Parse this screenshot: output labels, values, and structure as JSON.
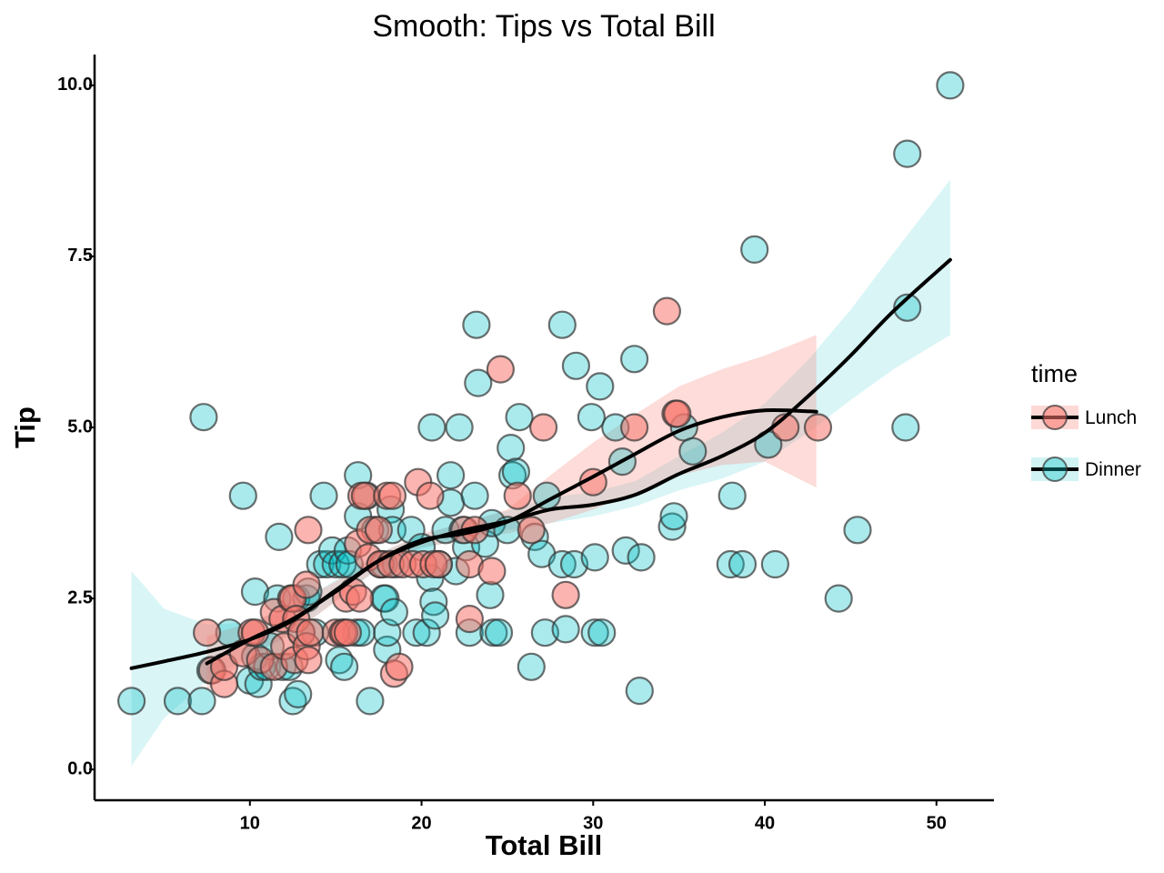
{
  "chart_data": {
    "type": "scatter",
    "title": "Smooth: Tips vs Total Bill",
    "xlabel": "Total Bill",
    "ylabel": "Tip",
    "xlim": [
      0.95,
      53.35
    ],
    "ylim": [
      -0.45,
      10.45
    ],
    "x_ticks": [
      10,
      20,
      30,
      40,
      50
    ],
    "x_tick_labels": [
      "10",
      "20",
      "30",
      "40",
      "50"
    ],
    "y_ticks": [
      0.0,
      2.5,
      5.0,
      7.5,
      10.0
    ],
    "y_tick_labels": [
      "0.0",
      "2.5",
      "5.0",
      "7.5",
      "10.0"
    ],
    "grid": false,
    "legend": {
      "title": "time",
      "placement": "right"
    },
    "series": [
      {
        "name": "Lunch",
        "color": "#F8766D",
        "points": [
          [
            7.5,
            2.0
          ],
          [
            7.8,
            1.45
          ],
          [
            8.5,
            1.25
          ],
          [
            8.5,
            1.5
          ],
          [
            9.6,
            1.7
          ],
          [
            10.1,
            2.0
          ],
          [
            10.3,
            2.0
          ],
          [
            10.6,
            1.6
          ],
          [
            11.4,
            1.5
          ],
          [
            11.4,
            2.3
          ],
          [
            11.9,
            2.2
          ],
          [
            12.0,
            1.8
          ],
          [
            12.4,
            2.5
          ],
          [
            12.5,
            2.5
          ],
          [
            12.6,
            1.6
          ],
          [
            12.7,
            2.2
          ],
          [
            13.0,
            2.0
          ],
          [
            13.3,
            2.7
          ],
          [
            13.3,
            1.8
          ],
          [
            13.4,
            1.6
          ],
          [
            13.4,
            3.5
          ],
          [
            13.5,
            2.0
          ],
          [
            15.0,
            2.0
          ],
          [
            15.4,
            2.0
          ],
          [
            15.5,
            2.0
          ],
          [
            15.6,
            2.5
          ],
          [
            15.7,
            2.0
          ],
          [
            16.0,
            2.6
          ],
          [
            16.3,
            3.3
          ],
          [
            16.4,
            2.5
          ],
          [
            16.5,
            4.0
          ],
          [
            16.7,
            4.0
          ],
          [
            16.9,
            3.1
          ],
          [
            17.0,
            3.5
          ],
          [
            17.5,
            3.5
          ],
          [
            17.6,
            3.0
          ],
          [
            18.0,
            4.0
          ],
          [
            18.2,
            3.0
          ],
          [
            18.3,
            4.0
          ],
          [
            18.4,
            1.4
          ],
          [
            18.7,
            1.5
          ],
          [
            18.9,
            3.0
          ],
          [
            19.5,
            3.0
          ],
          [
            19.8,
            4.2
          ],
          [
            20.1,
            3.0
          ],
          [
            20.5,
            4.0
          ],
          [
            20.7,
            3.0
          ],
          [
            21.0,
            3.0
          ],
          [
            22.5,
            3.5
          ],
          [
            22.8,
            3.0
          ],
          [
            22.8,
            2.2
          ],
          [
            23.1,
            3.5
          ],
          [
            24.1,
            2.9
          ],
          [
            24.6,
            5.85
          ],
          [
            25.6,
            4.0
          ],
          [
            26.4,
            3.5
          ],
          [
            27.1,
            5.0
          ],
          [
            28.4,
            2.55
          ],
          [
            30.0,
            4.2
          ],
          [
            32.4,
            5.0
          ],
          [
            34.3,
            6.7
          ],
          [
            34.8,
            5.2
          ],
          [
            34.9,
            5.2
          ],
          [
            41.2,
            5.0
          ],
          [
            43.1,
            5.0
          ]
        ],
        "smooth": [
          [
            7.5,
            1.55
          ],
          [
            10,
            1.9
          ],
          [
            12.5,
            2.2
          ],
          [
            15,
            2.6
          ],
          [
            17.5,
            3.05
          ],
          [
            20,
            3.35
          ],
          [
            22.5,
            3.45
          ],
          [
            25,
            3.62
          ],
          [
            27.5,
            3.95
          ],
          [
            30,
            4.28
          ],
          [
            32.5,
            4.62
          ],
          [
            35,
            4.95
          ],
          [
            37.5,
            5.15
          ],
          [
            40,
            5.25
          ],
          [
            43,
            5.23
          ]
        ],
        "band_low": [
          [
            7.5,
            1.15
          ],
          [
            10,
            1.65
          ],
          [
            12.5,
            2.0
          ],
          [
            15,
            2.45
          ],
          [
            17.5,
            2.95
          ],
          [
            20,
            3.25
          ],
          [
            22.5,
            3.35
          ],
          [
            25,
            3.45
          ],
          [
            27.5,
            3.6
          ],
          [
            30,
            3.8
          ],
          [
            32.5,
            4.05
          ],
          [
            35,
            4.3
          ],
          [
            37.5,
            4.45
          ],
          [
            40,
            4.5
          ],
          [
            43,
            4.12
          ]
        ],
        "band_high": [
          [
            7.5,
            1.95
          ],
          [
            10,
            2.15
          ],
          [
            12.5,
            2.4
          ],
          [
            15,
            2.75
          ],
          [
            17.5,
            3.15
          ],
          [
            20,
            3.45
          ],
          [
            22.5,
            3.6
          ],
          [
            25,
            3.8
          ],
          [
            27.5,
            4.3
          ],
          [
            30,
            4.78
          ],
          [
            32.5,
            5.2
          ],
          [
            35,
            5.6
          ],
          [
            37.5,
            5.85
          ],
          [
            40,
            6.05
          ],
          [
            43,
            6.35
          ]
        ]
      },
      {
        "name": "Dinner",
        "color": "#00BFC4",
        "points": [
          [
            3.1,
            1.0
          ],
          [
            5.8,
            1.0
          ],
          [
            7.2,
            1.0
          ],
          [
            7.3,
            5.15
          ],
          [
            7.7,
            1.45
          ],
          [
            8.8,
            2.0
          ],
          [
            9.6,
            4.0
          ],
          [
            10.0,
            1.3
          ],
          [
            10.3,
            2.6
          ],
          [
            10.3,
            1.65
          ],
          [
            10.5,
            1.25
          ],
          [
            10.7,
            1.5
          ],
          [
            11.0,
            1.5
          ],
          [
            11.2,
            1.8
          ],
          [
            11.6,
            2.5
          ],
          [
            11.7,
            3.4
          ],
          [
            11.9,
            1.5
          ],
          [
            12.3,
            1.5
          ],
          [
            12.5,
            1.0
          ],
          [
            12.7,
            2.5
          ],
          [
            12.8,
            1.1
          ],
          [
            13.0,
            2.0
          ],
          [
            13.3,
            2.5
          ],
          [
            13.4,
            2.6
          ],
          [
            13.8,
            2.0
          ],
          [
            14.1,
            3.0
          ],
          [
            14.3,
            4.0
          ],
          [
            14.5,
            3.0
          ],
          [
            14.8,
            3.2
          ],
          [
            15.0,
            3.0
          ],
          [
            15.2,
            1.6
          ],
          [
            15.4,
            3.0
          ],
          [
            15.5,
            1.5
          ],
          [
            15.7,
            3.2
          ],
          [
            15.8,
            3.0
          ],
          [
            16.2,
            2.0
          ],
          [
            16.3,
            3.7
          ],
          [
            16.3,
            4.3
          ],
          [
            16.5,
            2.0
          ],
          [
            16.8,
            4.0
          ],
          [
            17.0,
            1.0
          ],
          [
            17.3,
            3.5
          ],
          [
            17.6,
            3.0
          ],
          [
            17.8,
            2.5
          ],
          [
            17.8,
            3.0
          ],
          [
            17.9,
            2.5
          ],
          [
            18.0,
            1.75
          ],
          [
            18.0,
            2.0
          ],
          [
            18.2,
            3.8
          ],
          [
            18.3,
            3.5
          ],
          [
            18.4,
            2.3
          ],
          [
            18.5,
            3.0
          ],
          [
            19.4,
            3.5
          ],
          [
            19.7,
            2.0
          ],
          [
            20.0,
            3.25
          ],
          [
            20.3,
            2.0
          ],
          [
            20.5,
            2.8
          ],
          [
            20.6,
            5.0
          ],
          [
            20.7,
            2.45
          ],
          [
            20.8,
            2.25
          ],
          [
            21.0,
            3.0
          ],
          [
            21.4,
            3.5
          ],
          [
            21.7,
            3.9
          ],
          [
            21.7,
            4.3
          ],
          [
            22.0,
            2.9
          ],
          [
            22.2,
            5.0
          ],
          [
            22.4,
            3.5
          ],
          [
            22.6,
            3.25
          ],
          [
            22.8,
            2.0
          ],
          [
            23.1,
            4.0
          ],
          [
            23.2,
            6.5
          ],
          [
            23.3,
            5.65
          ],
          [
            23.7,
            3.3
          ],
          [
            24.0,
            2.55
          ],
          [
            24.1,
            3.6
          ],
          [
            24.2,
            2.0
          ],
          [
            24.5,
            2.0
          ],
          [
            25.0,
            3.5
          ],
          [
            25.2,
            4.7
          ],
          [
            25.3,
            4.3
          ],
          [
            25.5,
            4.35
          ],
          [
            25.7,
            5.15
          ],
          [
            26.4,
            1.5
          ],
          [
            26.6,
            3.4
          ],
          [
            27.0,
            3.15
          ],
          [
            27.2,
            2.0
          ],
          [
            27.3,
            4.0
          ],
          [
            28.2,
            3.0
          ],
          [
            28.2,
            6.5
          ],
          [
            28.4,
            2.05
          ],
          [
            28.9,
            3.0
          ],
          [
            29.0,
            5.9
          ],
          [
            29.9,
            5.15
          ],
          [
            30.1,
            3.1
          ],
          [
            30.1,
            2.0
          ],
          [
            30.4,
            5.6
          ],
          [
            30.5,
            2.0
          ],
          [
            31.3,
            5.0
          ],
          [
            31.7,
            4.5
          ],
          [
            31.9,
            3.2
          ],
          [
            32.4,
            6.0
          ],
          [
            32.7,
            1.15
          ],
          [
            32.8,
            3.1
          ],
          [
            34.6,
            3.55
          ],
          [
            34.7,
            3.7
          ],
          [
            35.3,
            5.0
          ],
          [
            35.8,
            4.65
          ],
          [
            38.0,
            3.0
          ],
          [
            38.1,
            4.0
          ],
          [
            38.7,
            3.0
          ],
          [
            39.4,
            7.6
          ],
          [
            40.2,
            4.75
          ],
          [
            40.6,
            3.0
          ],
          [
            44.3,
            2.5
          ],
          [
            45.4,
            3.5
          ],
          [
            48.2,
            5.0
          ],
          [
            48.3,
            6.75
          ],
          [
            48.3,
            9.0
          ],
          [
            50.8,
            10.0
          ]
        ],
        "smooth": [
          [
            3.1,
            1.48
          ],
          [
            5,
            1.58
          ],
          [
            7.5,
            1.72
          ],
          [
            10,
            1.9
          ],
          [
            12.5,
            2.18
          ],
          [
            15,
            2.62
          ],
          [
            17.5,
            3.05
          ],
          [
            20,
            3.32
          ],
          [
            22.5,
            3.5
          ],
          [
            25,
            3.63
          ],
          [
            27.5,
            3.8
          ],
          [
            30,
            3.87
          ],
          [
            32.5,
            4.02
          ],
          [
            35,
            4.32
          ],
          [
            37.5,
            4.58
          ],
          [
            40,
            4.92
          ],
          [
            42.5,
            5.45
          ],
          [
            45,
            6.05
          ],
          [
            47.5,
            6.7
          ],
          [
            50.8,
            7.45
          ]
        ],
        "band_low": [
          [
            3.1,
            0.05
          ],
          [
            5,
            0.75
          ],
          [
            7.5,
            1.3
          ],
          [
            10,
            1.65
          ],
          [
            12.5,
            1.98
          ],
          [
            15,
            2.47
          ],
          [
            17.5,
            2.93
          ],
          [
            20,
            3.22
          ],
          [
            22.5,
            3.38
          ],
          [
            25,
            3.5
          ],
          [
            27.5,
            3.6
          ],
          [
            30,
            3.7
          ],
          [
            32.5,
            3.85
          ],
          [
            35,
            4.08
          ],
          [
            37.5,
            4.25
          ],
          [
            40,
            4.5
          ],
          [
            42.5,
            4.92
          ],
          [
            45,
            5.4
          ],
          [
            47.5,
            5.85
          ],
          [
            50.8,
            6.35
          ]
        ],
        "band_high": [
          [
            3.1,
            2.9
          ],
          [
            5,
            2.35
          ],
          [
            7.5,
            2.12
          ],
          [
            10,
            2.15
          ],
          [
            12.5,
            2.38
          ],
          [
            15,
            2.77
          ],
          [
            17.5,
            3.17
          ],
          [
            20,
            3.42
          ],
          [
            22.5,
            3.62
          ],
          [
            25,
            3.78
          ],
          [
            27.5,
            3.98
          ],
          [
            30,
            4.05
          ],
          [
            32.5,
            4.22
          ],
          [
            35,
            4.58
          ],
          [
            37.5,
            4.92
          ],
          [
            40,
            5.35
          ],
          [
            42.5,
            5.98
          ],
          [
            45,
            6.72
          ],
          [
            47.5,
            7.55
          ],
          [
            50.8,
            8.62
          ]
        ]
      }
    ]
  }
}
